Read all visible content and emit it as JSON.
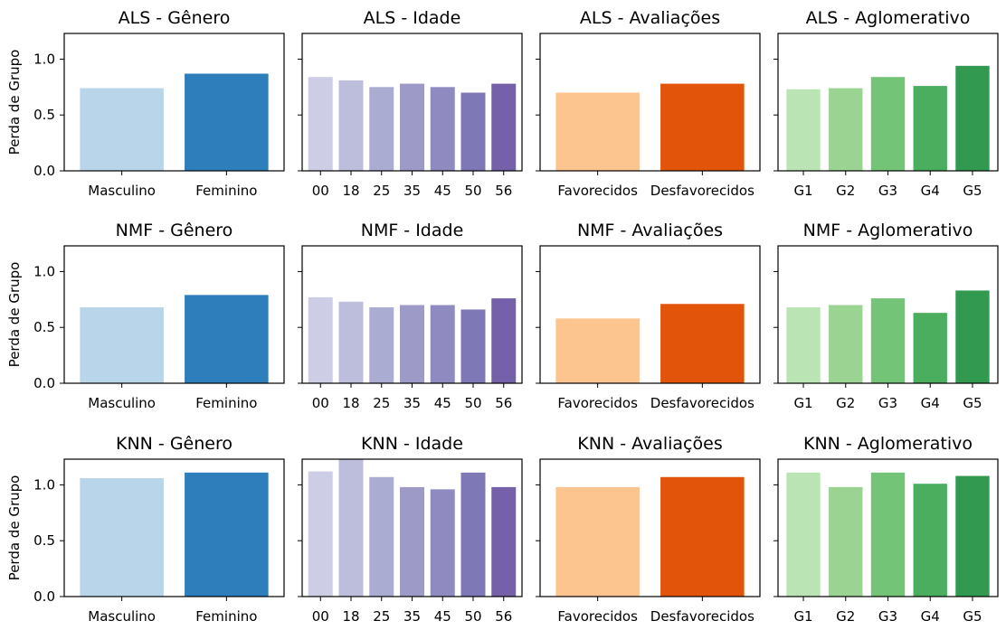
{
  "chart_data": [
    {
      "type": "bar",
      "title": "ALS - Gênero",
      "categories": [
        "Masculino",
        "Feminino"
      ],
      "values": [
        0.74,
        0.87
      ],
      "colors": [
        "#b9d5ea",
        "#2f7ebc"
      ],
      "ylabel": "Perda de Grupo",
      "ylim": [
        0,
        1.23
      ],
      "yticks": [
        "0.0",
        "0.5",
        "1.0"
      ]
    },
    {
      "type": "bar",
      "title": "ALS - Idade",
      "categories": [
        "00",
        "18",
        "25",
        "35",
        "45",
        "50",
        "56"
      ],
      "values": [
        0.84,
        0.81,
        0.75,
        0.78,
        0.75,
        0.7,
        0.78
      ],
      "colors": [
        "#cdcee6",
        "#bdbddc",
        "#abacd2",
        "#9d9ac8",
        "#8f8bc0",
        "#7f78b7",
        "#7461aa"
      ],
      "ylim": [
        0,
        1.23
      ]
    },
    {
      "type": "bar",
      "title": "ALS - Avaliações",
      "categories": [
        "Favorecidos",
        "Desfavorecidos"
      ],
      "values": [
        0.7,
        0.78
      ],
      "colors": [
        "#fcc48f",
        "#e2540a"
      ],
      "ylim": [
        0,
        1.23
      ]
    },
    {
      "type": "bar",
      "title": "ALS - Aglomerativo",
      "categories": [
        "G1",
        "G2",
        "G3",
        "G4",
        "G5"
      ],
      "values": [
        0.73,
        0.74,
        0.84,
        0.76,
        0.94
      ],
      "colors": [
        "#bae4b3",
        "#9bd393",
        "#73c477",
        "#4bae5f",
        "#329a50"
      ],
      "ylim": [
        0,
        1.23
      ]
    },
    {
      "type": "bar",
      "title": "NMF - Gênero",
      "categories": [
        "Masculino",
        "Feminino"
      ],
      "values": [
        0.68,
        0.79
      ],
      "colors": [
        "#b9d5ea",
        "#2f7ebc"
      ],
      "ylabel": "Perda de Grupo",
      "ylim": [
        0,
        1.23
      ],
      "yticks": [
        "0.0",
        "0.5",
        "1.0"
      ]
    },
    {
      "type": "bar",
      "title": "NMF - Idade",
      "categories": [
        "00",
        "18",
        "25",
        "35",
        "45",
        "50",
        "56"
      ],
      "values": [
        0.77,
        0.73,
        0.68,
        0.7,
        0.7,
        0.66,
        0.76
      ],
      "colors": [
        "#cdcee6",
        "#bdbddc",
        "#abacd2",
        "#9d9ac8",
        "#8f8bc0",
        "#7f78b7",
        "#7461aa"
      ],
      "ylim": [
        0,
        1.23
      ]
    },
    {
      "type": "bar",
      "title": "NMF - Avaliações",
      "categories": [
        "Favorecidos",
        "Desfavorecidos"
      ],
      "values": [
        0.58,
        0.71
      ],
      "colors": [
        "#fcc48f",
        "#e2540a"
      ],
      "ylim": [
        0,
        1.23
      ]
    },
    {
      "type": "bar",
      "title": "NMF - Aglomerativo",
      "categories": [
        "G1",
        "G2",
        "G3",
        "G4",
        "G5"
      ],
      "values": [
        0.68,
        0.7,
        0.76,
        0.63,
        0.83
      ],
      "colors": [
        "#bae4b3",
        "#9bd393",
        "#73c477",
        "#4bae5f",
        "#329a50"
      ],
      "ylim": [
        0,
        1.23
      ]
    },
    {
      "type": "bar",
      "title": "KNN - Gênero",
      "categories": [
        "Masculino",
        "Feminino"
      ],
      "values": [
        1.06,
        1.11
      ],
      "colors": [
        "#b9d5ea",
        "#2f7ebc"
      ],
      "ylabel": "Perda de Grupo",
      "ylim": [
        0,
        1.23
      ],
      "yticks": [
        "0.0",
        "0.5",
        "1.0"
      ]
    },
    {
      "type": "bar",
      "title": "KNN - Idade",
      "categories": [
        "00",
        "18",
        "25",
        "35",
        "45",
        "50",
        "56"
      ],
      "values": [
        1.12,
        1.23,
        1.07,
        0.98,
        0.96,
        1.11,
        0.98
      ],
      "colors": [
        "#cdcee6",
        "#bdbddc",
        "#abacd2",
        "#9d9ac8",
        "#8f8bc0",
        "#7f78b7",
        "#7461aa"
      ],
      "ylim": [
        0,
        1.23
      ]
    },
    {
      "type": "bar",
      "title": "KNN - Avaliações",
      "categories": [
        "Favorecidos",
        "Desfavorecidos"
      ],
      "values": [
        0.98,
        1.07
      ],
      "colors": [
        "#fcc48f",
        "#e2540a"
      ],
      "ylim": [
        0,
        1.23
      ]
    },
    {
      "type": "bar",
      "title": "KNN - Aglomerativo",
      "categories": [
        "G1",
        "G2",
        "G3",
        "G4",
        "G5"
      ],
      "values": [
        1.11,
        0.98,
        1.11,
        1.01,
        1.08
      ],
      "colors": [
        "#bae4b3",
        "#9bd393",
        "#73c477",
        "#4bae5f",
        "#329a50"
      ],
      "ylim": [
        0,
        1.23
      ]
    }
  ]
}
